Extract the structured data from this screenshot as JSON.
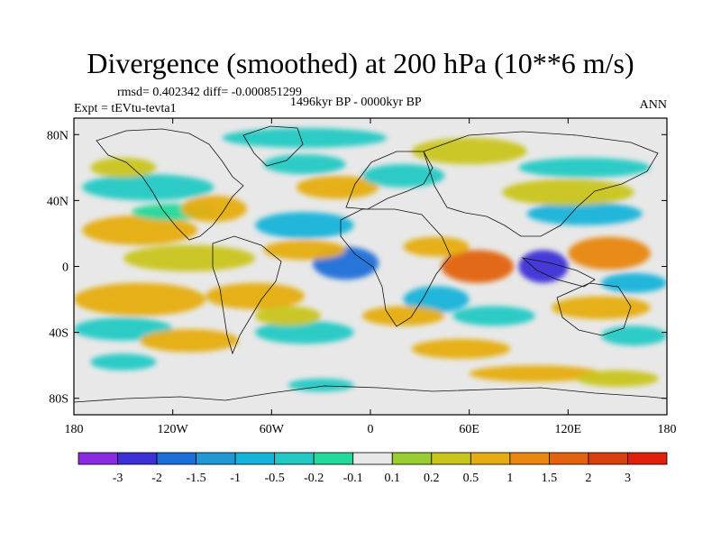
{
  "chart_data": {
    "type": "heatmap",
    "title": "Divergence (smoothed) at 200 hPa (10**6 m/s)",
    "stats_text": "rmsd= 0.402342  diff= -0.000851299",
    "experiment_text": "Expt = tEVtu-tevta1",
    "period_text": "1496kyr BP - 0000kyr BP",
    "season_text": "ANN",
    "x_ticks": [
      "180",
      "120W",
      "60W",
      "0",
      "60E",
      "120E",
      "180"
    ],
    "x_tick_values": [
      -180,
      -120,
      -60,
      0,
      60,
      120,
      180
    ],
    "y_ticks": [
      "80N",
      "40N",
      "0",
      "40S",
      "80S"
    ],
    "y_tick_values": [
      80,
      40,
      0,
      -40,
      -80
    ],
    "xlim": [
      -180,
      180
    ],
    "ylim": [
      -90,
      90
    ],
    "colorbar": {
      "labels": [
        "-3",
        "-2",
        "-1.5",
        "-1",
        "-0.5",
        "-0.2",
        "-0.1",
        "0.1",
        "0.2",
        "0.5",
        "1",
        "1.5",
        "2",
        "3"
      ],
      "levels": [
        -3,
        -2,
        -1.5,
        -1,
        -0.5,
        -0.2,
        -0.1,
        0.1,
        0.2,
        0.5,
        1,
        1.5,
        2,
        3
      ],
      "colors": [
        "#8a2be2",
        "#3d2fd6",
        "#1a6fd9",
        "#1f99d6",
        "#14b3d9",
        "#22c9c4",
        "#22d89a",
        "#e8e8e8",
        "#9acd32",
        "#c9c51e",
        "#e6ad12",
        "#e8860f",
        "#e2620f",
        "#d8400e",
        "#e0200c"
      ]
    },
    "features": [
      {
        "name": "warm-pacific-band",
        "lon": -140,
        "lat": 22,
        "rx": 35,
        "ry": 9,
        "value": 0.7
      },
      {
        "name": "warm-central-pacific",
        "lon": -110,
        "lat": 5,
        "rx": 40,
        "ry": 8,
        "value": 0.4
      },
      {
        "name": "cool-north-pacific-band",
        "lon": -135,
        "lat": 48,
        "rx": 40,
        "ry": 8,
        "value": -0.4
      },
      {
        "name": "warm-north-pacific",
        "lon": -150,
        "lat": 60,
        "rx": 20,
        "ry": 6,
        "value": 0.3
      },
      {
        "name": "cool-east-pacific",
        "lon": -120,
        "lat": 33,
        "rx": 25,
        "ry": 5,
        "value": -0.2
      },
      {
        "name": "warm-south-pacific-band",
        "lon": -140,
        "lat": -20,
        "rx": 40,
        "ry": 10,
        "value": 0.7
      },
      {
        "name": "cool-south-pacific-band",
        "lon": -150,
        "lat": -38,
        "rx": 30,
        "ry": 7,
        "value": -0.5
      },
      {
        "name": "warm-south-pacific-2",
        "lon": -110,
        "lat": -45,
        "rx": 30,
        "ry": 7,
        "value": 0.5
      },
      {
        "name": "cool-south-ocean",
        "lon": -150,
        "lat": -58,
        "rx": 20,
        "ry": 5,
        "value": -0.3
      },
      {
        "name": "cool-southern-atlantic",
        "lon": -40,
        "lat": -40,
        "rx": 30,
        "ry": 7,
        "value": -0.5
      },
      {
        "name": "warm-south-atlantic",
        "lon": -70,
        "lat": -18,
        "rx": 30,
        "ry": 8,
        "value": 0.7
      },
      {
        "name": "cool-atlantic-strong",
        "lon": -15,
        "lat": 2,
        "rx": 20,
        "ry": 10,
        "value": -1.6
      },
      {
        "name": "cool-atlantic-north",
        "lon": -40,
        "lat": 25,
        "rx": 30,
        "ry": 8,
        "value": -0.6
      },
      {
        "name": "warm-atlantic",
        "lon": -40,
        "lat": 10,
        "rx": 25,
        "ry": 6,
        "value": 0.8
      },
      {
        "name": "warm-north-atlantic",
        "lon": -20,
        "lat": 48,
        "rx": 25,
        "ry": 7,
        "value": 0.6
      },
      {
        "name": "cool-north-atlantic",
        "lon": -40,
        "lat": 62,
        "rx": 25,
        "ry": 6,
        "value": -0.3
      },
      {
        "name": "warm-north-america",
        "lon": -95,
        "lat": 35,
        "rx": 20,
        "ry": 8,
        "value": 0.5
      },
      {
        "name": "cool-arctic",
        "lon": -40,
        "lat": 78,
        "rx": 50,
        "ry": 6,
        "value": -0.3
      },
      {
        "name": "warm-siberia",
        "lon": 60,
        "lat": 70,
        "rx": 35,
        "ry": 8,
        "value": 0.4
      },
      {
        "name": "cool-europe",
        "lon": 20,
        "lat": 55,
        "rx": 25,
        "ry": 7,
        "value": -0.4
      },
      {
        "name": "warm-africa-strong",
        "lon": 65,
        "lat": 0,
        "rx": 22,
        "ry": 10,
        "value": 1.6
      },
      {
        "name": "warm-east-africa",
        "lon": 40,
        "lat": 12,
        "rx": 20,
        "ry": 6,
        "value": 0.6
      },
      {
        "name": "cool-africa",
        "lon": 40,
        "lat": -20,
        "rx": 20,
        "ry": 8,
        "value": -0.6
      },
      {
        "name": "warm-south-africa",
        "lon": 20,
        "lat": -30,
        "rx": 25,
        "ry": 6,
        "value": 0.6
      },
      {
        "name": "cool-indian-ocean",
        "lon": 75,
        "lat": -30,
        "rx": 25,
        "ry": 6,
        "value": -0.5
      },
      {
        "name": "warm-south-indian",
        "lon": 55,
        "lat": -50,
        "rx": 30,
        "ry": 6,
        "value": 0.6
      },
      {
        "name": "cool-maritime-strong",
        "lon": 105,
        "lat": 0,
        "rx": 15,
        "ry": 10,
        "value": -2.2
      },
      {
        "name": "warm-west-pacific",
        "lon": 145,
        "lat": 8,
        "rx": 25,
        "ry": 10,
        "value": 1.4
      },
      {
        "name": "cool-west-pacific",
        "lon": 130,
        "lat": 32,
        "rx": 35,
        "ry": 7,
        "value": -0.6
      },
      {
        "name": "warm-asia",
        "lon": 120,
        "lat": 45,
        "rx": 40,
        "ry": 8,
        "value": 0.4
      },
      {
        "name": "cool-north-asia",
        "lon": 130,
        "lat": 60,
        "rx": 40,
        "ry": 6,
        "value": -0.3
      },
      {
        "name": "cool-tropical-pacific",
        "lon": 160,
        "lat": -10,
        "rx": 20,
        "ry": 6,
        "value": -0.6
      },
      {
        "name": "warm-australia",
        "lon": 140,
        "lat": -25,
        "rx": 30,
        "ry": 7,
        "value": 0.7
      },
      {
        "name": "cool-south-west-pacific",
        "lon": 160,
        "lat": -42,
        "rx": 20,
        "ry": 6,
        "value": -0.4
      },
      {
        "name": "warm-southern-ocean",
        "lon": 100,
        "lat": -65,
        "rx": 40,
        "ry": 5,
        "value": 0.5
      },
      {
        "name": "warm-antarctic-east",
        "lon": 150,
        "lat": -68,
        "rx": 25,
        "ry": 5,
        "value": 0.4
      },
      {
        "name": "cool-antarctic",
        "lon": -30,
        "lat": -72,
        "rx": 20,
        "ry": 4,
        "value": -0.3
      },
      {
        "name": "warm-south-america",
        "lon": -50,
        "lat": -30,
        "rx": 20,
        "ry": 6,
        "value": 0.4
      }
    ]
  }
}
